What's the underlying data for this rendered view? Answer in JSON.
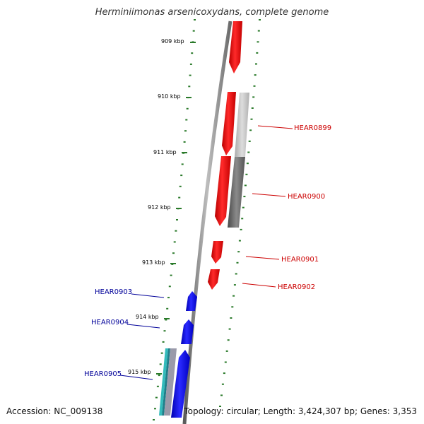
{
  "title": "Herminiimonas arsenicoxydans, complete genome",
  "accession_text": "Accession: NC_009138",
  "topology_text": "Topology: circular; Length: 3,424,307 bp; Genes: 3,353",
  "scale_labels": [
    "909 kbp",
    "910 kbp",
    "911 kbp",
    "912 kbp",
    "913 kbp",
    "914 kbp",
    "915 kbp"
  ],
  "genes": {
    "right": [
      {
        "name": "HEAR0899",
        "color": "#cc0000"
      },
      {
        "name": "HEAR0900",
        "color": "#cc0000"
      },
      {
        "name": "HEAR0901",
        "color": "#cc0000"
      },
      {
        "name": "HEAR0902",
        "color": "#cc0000"
      }
    ],
    "left": [
      {
        "name": "HEAR0903",
        "color": "#000099"
      },
      {
        "name": "HEAR0904",
        "color": "#000099"
      },
      {
        "name": "HEAR0905",
        "color": "#000099"
      }
    ]
  },
  "colors": {
    "forward_strand": "#ff0000",
    "reverse_strand": "#0000ee",
    "tick": "#2a7a2a",
    "backbone": "#888888",
    "rna_gray_light": "#c8c8c8",
    "rna_gray_dark": "#707070",
    "cyan": "#33bbbb"
  }
}
